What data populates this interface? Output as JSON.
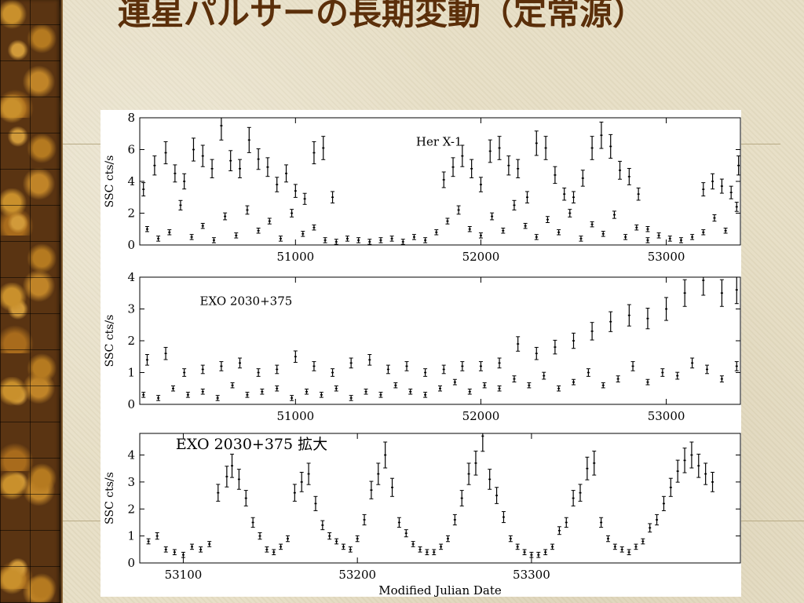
{
  "slide": {
    "title": "連星パルサーの長期変動（定常源）",
    "colors": {
      "title": "#5b2f0a",
      "strip": "#5a3412",
      "background": "#e7dfc6",
      "data": "#000000"
    }
  },
  "chart_data": [
    {
      "type": "scatter",
      "panel": "top",
      "annotation": "Her X-1",
      "xlabel": "",
      "ylabel": "SSC cts/s",
      "xlim": [
        50160,
        53400
      ],
      "ylim": [
        0,
        8
      ],
      "xticks": [
        51000,
        52000,
        53000
      ],
      "yticks": [
        0,
        2,
        4,
        6,
        8
      ],
      "series": [
        {
          "x": [
            50180,
            50240,
            50300,
            50350,
            50400,
            50450,
            50500,
            50550,
            50600,
            50650,
            50700,
            50750,
            50800,
            50850,
            50900,
            50950,
            51000,
            51050,
            51100,
            51150,
            51200,
            51800,
            51850,
            51900,
            51950,
            52000,
            52050,
            52100,
            52150,
            52200,
            52250,
            52300,
            52350,
            52400,
            52450,
            52500,
            52550,
            52600,
            52650,
            52700,
            52750,
            52800,
            52850,
            52900,
            53200,
            53250,
            53300,
            53350,
            53390
          ],
          "y": [
            3.5,
            5.0,
            5.8,
            4.5,
            4.0,
            6.0,
            5.6,
            4.8,
            7.5,
            5.3,
            4.8,
            6.6,
            5.4,
            4.9,
            3.8,
            4.5,
            3.4,
            2.9,
            5.8,
            6.1,
            3.0,
            4.1,
            4.9,
            5.6,
            4.8,
            3.8,
            5.9,
            6.1,
            5.0,
            4.8,
            3.0,
            6.4,
            6.1,
            4.4,
            3.2,
            3.0,
            4.2,
            6.1,
            6.9,
            6.2,
            4.7,
            4.3,
            3.2,
            1.0,
            3.5,
            4.0,
            3.7,
            3.3,
            5.0
          ]
        },
        {
          "x": [
            50200,
            50260,
            50320,
            50380,
            50440,
            50500,
            50560,
            50620,
            50680,
            50740,
            50800,
            50860,
            50920,
            50980,
            51040,
            51100,
            51160,
            51220,
            51280,
            51340,
            51400,
            51460,
            51520,
            51580,
            51640,
            51700,
            51760,
            51820,
            51880,
            51940,
            52000,
            52060,
            52120,
            52180,
            52240,
            52300,
            52360,
            52420,
            52480,
            52540,
            52600,
            52660,
            52720,
            52780,
            52840,
            52900,
            52960,
            53020,
            53080,
            53140,
            53200,
            53260,
            53320,
            53380
          ],
          "y": [
            1.0,
            0.4,
            0.8,
            2.5,
            0.5,
            1.2,
            0.3,
            1.8,
            0.6,
            2.2,
            0.9,
            1.5,
            0.4,
            2.0,
            0.7,
            1.1,
            0.3,
            0.2,
            0.4,
            0.3,
            0.2,
            0.3,
            0.4,
            0.2,
            0.5,
            0.3,
            0.8,
            1.5,
            2.2,
            1.0,
            0.6,
            1.8,
            0.9,
            2.5,
            1.2,
            0.5,
            1.6,
            0.8,
            2.0,
            0.4,
            1.3,
            0.7,
            1.9,
            0.5,
            1.1,
            0.3,
            0.6,
            0.4,
            0.3,
            0.5,
            0.8,
            1.7,
            0.9,
            2.4
          ]
        }
      ]
    },
    {
      "type": "scatter",
      "panel": "middle",
      "annotation": "EXO 2030+375",
      "xlabel": "",
      "ylabel": "SSC cts/s",
      "xlim": [
        50160,
        53400
      ],
      "ylim": [
        0,
        4
      ],
      "xticks": [
        51000,
        52000,
        53000
      ],
      "yticks": [
        0,
        1,
        2,
        3,
        4
      ],
      "series": [
        {
          "x": [
            50200,
            50300,
            50400,
            50500,
            50600,
            50700,
            50800,
            50900,
            51000,
            51100,
            51200,
            51300,
            51400,
            51500,
            51600,
            51700,
            51800,
            51900,
            52000,
            52100,
            52200,
            52300,
            52400,
            52500,
            52600,
            52700,
            52800,
            52900,
            53000,
            53100,
            53200,
            53300,
            53380
          ],
          "y": [
            1.4,
            1.6,
            1.0,
            1.1,
            1.2,
            1.3,
            1.0,
            1.1,
            1.5,
            1.2,
            1.0,
            1.3,
            1.4,
            1.1,
            1.2,
            1.0,
            1.1,
            1.2,
            1.2,
            1.3,
            1.9,
            1.6,
            1.8,
            2.0,
            2.3,
            2.6,
            2.8,
            2.7,
            3.0,
            3.5,
            3.9,
            3.5,
            3.6
          ]
        },
        {
          "x": [
            50180,
            50260,
            50340,
            50420,
            50500,
            50580,
            50660,
            50740,
            50820,
            50900,
            50980,
            51060,
            51140,
            51220,
            51300,
            51380,
            51460,
            51540,
            51620,
            51700,
            51780,
            51860,
            51940,
            52020,
            52100,
            52180,
            52260,
            52340,
            52420,
            52500,
            52580,
            52660,
            52740,
            52820,
            52900,
            52980,
            53060,
            53140,
            53220,
            53300,
            53380
          ],
          "y": [
            0.3,
            0.2,
            0.5,
            0.3,
            0.4,
            0.2,
            0.6,
            0.3,
            0.4,
            0.5,
            0.2,
            0.4,
            0.3,
            0.5,
            0.2,
            0.4,
            0.3,
            0.6,
            0.4,
            0.3,
            0.5,
            0.7,
            0.4,
            0.6,
            0.5,
            0.8,
            0.6,
            0.9,
            0.5,
            0.7,
            1.0,
            0.6,
            0.8,
            1.2,
            0.7,
            1.0,
            0.9,
            1.3,
            1.1,
            0.8,
            1.2
          ]
        }
      ]
    },
    {
      "type": "scatter",
      "panel": "bottom",
      "annotation": "EXO 2030+375 拡大",
      "xlabel": "Modified Julian Date",
      "ylabel": "SSC cts/s",
      "xlim": [
        53075,
        53420
      ],
      "ylim": [
        0,
        4.8
      ],
      "xticks": [
        53100,
        53200,
        53300
      ],
      "yticks": [
        0,
        1,
        2,
        3,
        4
      ],
      "series": [
        {
          "x": [
            53080,
            53085,
            53090,
            53095,
            53100,
            53105,
            53110,
            53115,
            53120,
            53125,
            53128,
            53132,
            53136,
            53140,
            53144,
            53148,
            53152,
            53156,
            53160,
            53164,
            53168,
            53172,
            53176,
            53180,
            53184,
            53188,
            53192,
            53196,
            53200,
            53204,
            53208,
            53212,
            53216,
            53220,
            53224,
            53228,
            53232,
            53236,
            53240,
            53244,
            53248,
            53252,
            53256,
            53260,
            53264,
            53268,
            53272,
            53276,
            53280,
            53284,
            53288,
            53292,
            53296,
            53300,
            53304,
            53308,
            53312,
            53316,
            53320,
            53324,
            53328,
            53332,
            53336,
            53340,
            53344,
            53348,
            53352,
            53356,
            53360,
            53364,
            53368,
            53372,
            53376,
            53380,
            53384,
            53388,
            53392,
            53396,
            53400,
            53404
          ],
          "y": [
            0.8,
            1.0,
            0.5,
            0.4,
            0.3,
            0.6,
            0.5,
            0.7,
            2.6,
            3.2,
            3.6,
            3.1,
            2.4,
            1.5,
            1.0,
            0.5,
            0.4,
            0.6,
            0.9,
            2.6,
            3.0,
            3.3,
            2.2,
            1.4,
            1.0,
            0.8,
            0.6,
            0.5,
            0.9,
            1.6,
            2.7,
            3.3,
            4.0,
            2.8,
            1.5,
            1.1,
            0.7,
            0.5,
            0.4,
            0.4,
            0.6,
            0.9,
            1.6,
            2.4,
            3.3,
            3.7,
            4.7,
            3.1,
            2.5,
            1.7,
            0.9,
            0.6,
            0.4,
            0.3,
            0.3,
            0.4,
            0.6,
            1.2,
            1.5,
            2.4,
            2.6,
            3.5,
            3.7,
            1.5,
            0.9,
            0.6,
            0.5,
            0.4,
            0.6,
            0.8,
            1.3,
            1.6,
            2.2,
            2.8,
            3.4,
            3.8,
            4.0,
            3.6,
            3.3,
            3.0
          ]
        }
      ]
    }
  ]
}
